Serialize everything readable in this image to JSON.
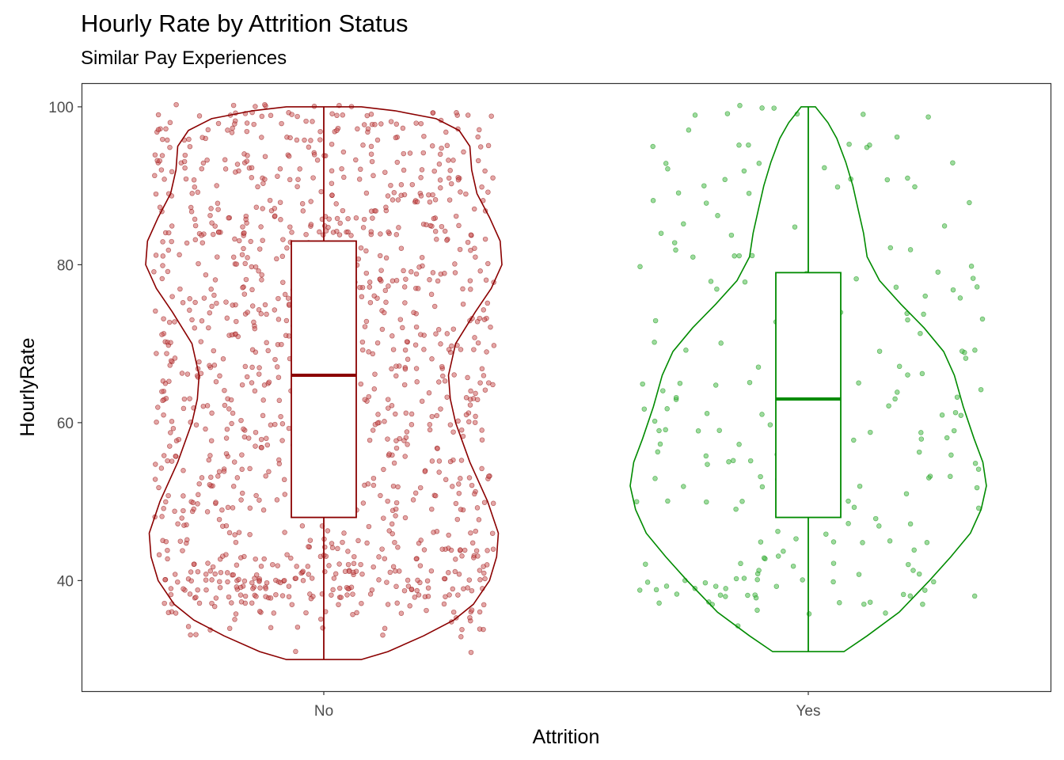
{
  "title": "Hourly Rate by Attrition Status",
  "subtitle": "Similar Pay Experiences",
  "chart_data": {
    "type": "violin_box_jitter",
    "xlabel": "Attrition",
    "ylabel": "HourlyRate",
    "ylim": [
      26,
      103
    ],
    "yticks": [
      40,
      60,
      80,
      100
    ],
    "grid": false,
    "legend": "none",
    "groups": [
      {
        "name": "No",
        "color": "#8b0000",
        "point_color": "#cd5c5c",
        "n_points": 1233,
        "box": {
          "min": 30,
          "q1": 48,
          "median": 66,
          "q3": 83,
          "max": 100
        },
        "violin": [
          [
            30,
            0.21
          ],
          [
            31,
            0.36
          ],
          [
            33,
            0.56
          ],
          [
            35,
            0.73
          ],
          [
            37,
            0.84
          ],
          [
            40,
            0.93
          ],
          [
            43,
            0.97
          ],
          [
            46,
            0.98
          ],
          [
            50,
            0.92
          ],
          [
            55,
            0.82
          ],
          [
            60,
            0.74
          ],
          [
            63,
            0.71
          ],
          [
            66,
            0.7
          ],
          [
            70,
            0.74
          ],
          [
            74,
            0.85
          ],
          [
            77,
            0.94
          ],
          [
            80,
            1.0
          ],
          [
            83,
            0.99
          ],
          [
            86,
            0.93
          ],
          [
            89,
            0.86
          ],
          [
            92,
            0.83
          ],
          [
            95,
            0.82
          ],
          [
            97,
            0.76
          ],
          [
            98.5,
            0.63
          ],
          [
            99.5,
            0.4
          ],
          [
            100,
            0.21
          ]
        ]
      },
      {
        "name": "Yes",
        "color": "#008b00",
        "point_color": "#4cbb4c",
        "n_points": 237,
        "box": {
          "min": 31,
          "q1": 48,
          "median": 63,
          "q3": 79,
          "max": 100
        },
        "violin": [
          [
            31,
            0.2
          ],
          [
            33,
            0.33
          ],
          [
            36,
            0.51
          ],
          [
            40,
            0.68
          ],
          [
            43,
            0.8
          ],
          [
            46,
            0.91
          ],
          [
            49,
            0.97
          ],
          [
            52,
            1.0
          ],
          [
            55,
            0.98
          ],
          [
            58,
            0.93
          ],
          [
            62,
            0.87
          ],
          [
            66,
            0.82
          ],
          [
            69,
            0.76
          ],
          [
            72,
            0.65
          ],
          [
            75,
            0.52
          ],
          [
            78,
            0.4
          ],
          [
            81,
            0.33
          ],
          [
            84,
            0.31
          ],
          [
            87,
            0.28
          ],
          [
            90,
            0.25
          ],
          [
            93,
            0.21
          ],
          [
            96,
            0.16
          ],
          [
            98,
            0.11
          ],
          [
            100,
            0.04
          ]
        ]
      }
    ]
  }
}
